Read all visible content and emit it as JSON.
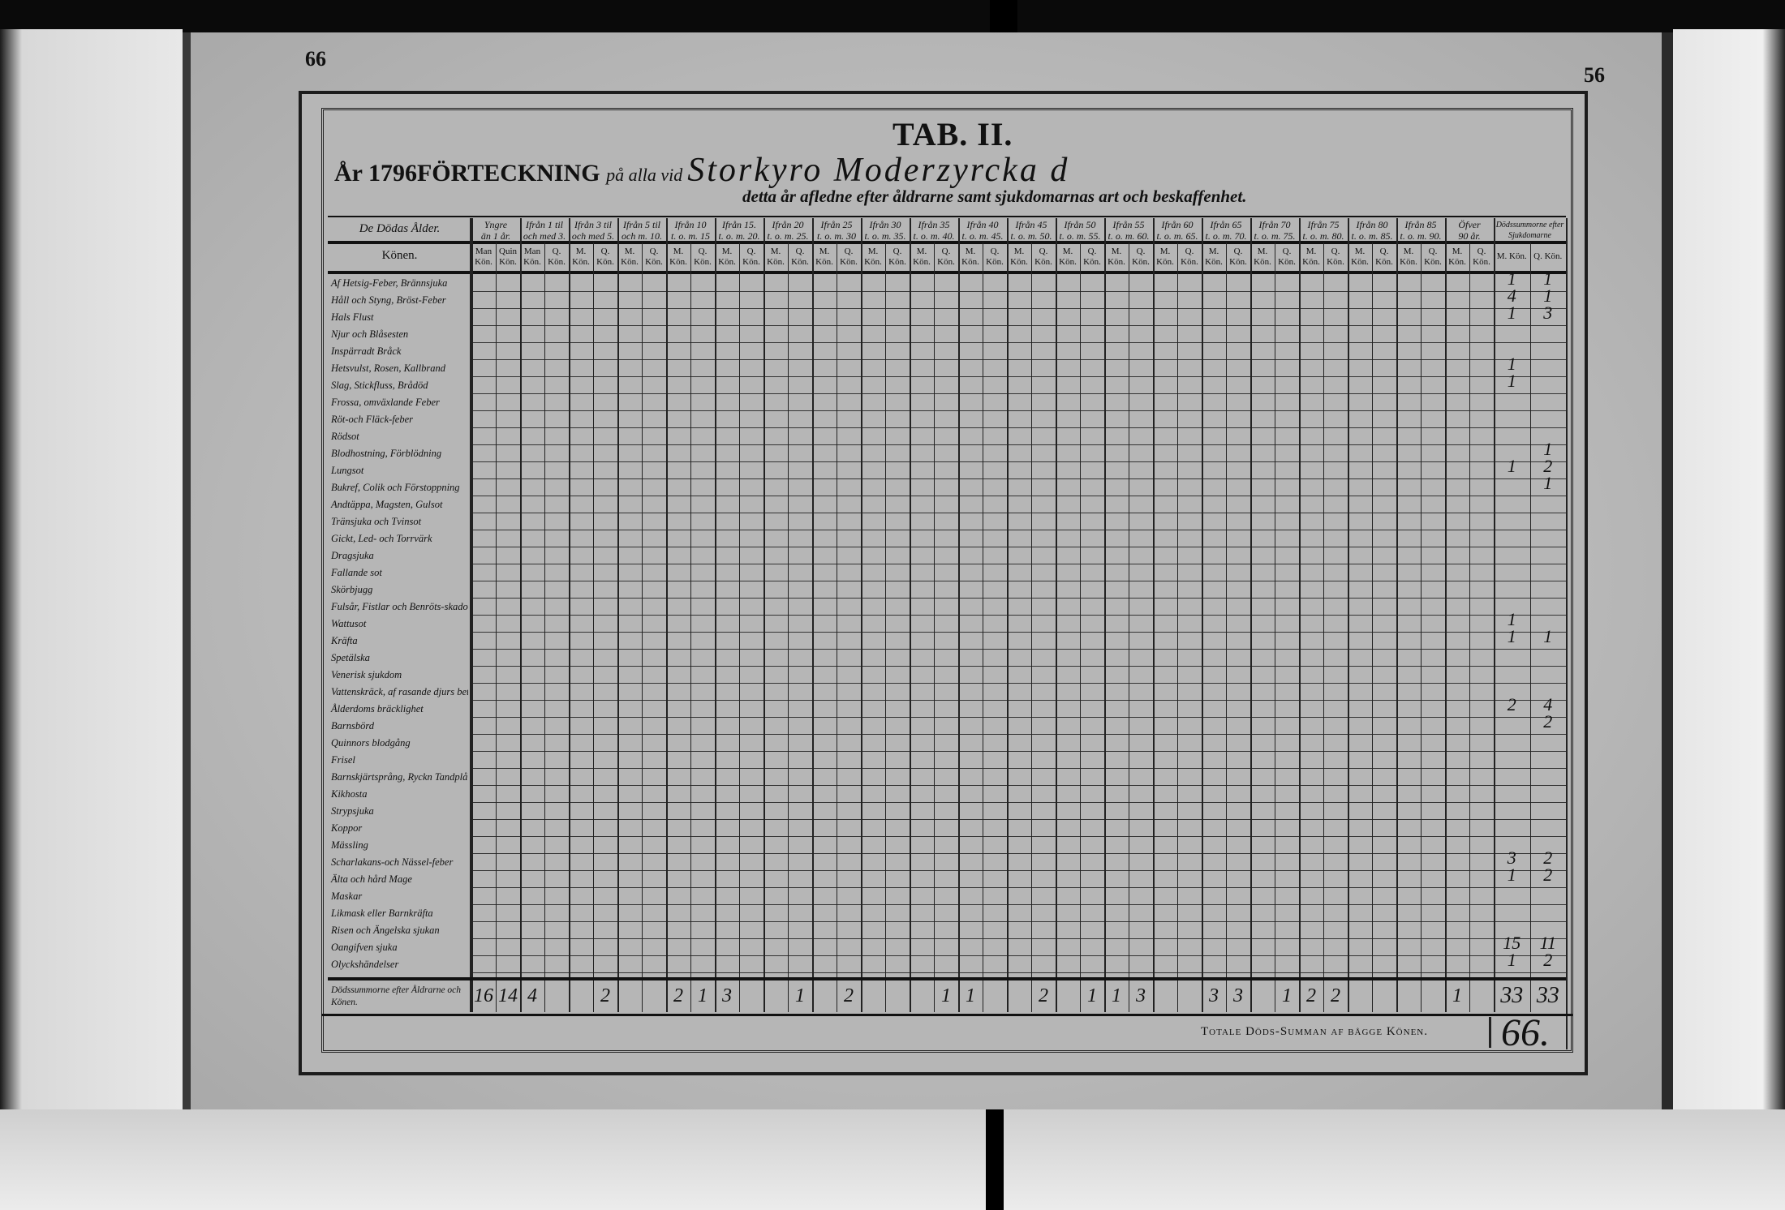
{
  "page": {
    "left_page_number": "66",
    "right_page_number": "56"
  },
  "header": {
    "tab": "TAB. II.",
    "year_prefix": "År 1796",
    "title": "FÖRTECKNING",
    "connector": "på alla vid",
    "parish_handwritten": "Storkyro Moderzyrcka d",
    "subtitle": "detta år afledne efter åldrarne samt sjukdomarnas art och beskaffenhet."
  },
  "table": {
    "age_label": "De Dödas Ålder.",
    "sex_label": "Könen.",
    "age_groups": [
      {
        "l1": "Yngre",
        "l2": "än 1 år."
      },
      {
        "l1": "Ifrån 1 til",
        "l2": "och med 3."
      },
      {
        "l1": "Ifrån 3 til",
        "l2": "och med 5."
      },
      {
        "l1": "Ifrån 5 til",
        "l2": "och m. 10."
      },
      {
        "l1": "Ifrån 10",
        "l2": "t. o. m. 15"
      },
      {
        "l1": "Ifrån 15.",
        "l2": "t. o. m. 20."
      },
      {
        "l1": "Ifrån 20",
        "l2": "t. o. m. 25."
      },
      {
        "l1": "Ifrån 25",
        "l2": "t. o. m. 30"
      },
      {
        "l1": "Ifrån 30",
        "l2": "t. o. m. 35."
      },
      {
        "l1": "Ifrån 35",
        "l2": "t. o. m. 40."
      },
      {
        "l1": "Ifrån 40",
        "l2": "t. o. m. 45."
      },
      {
        "l1": "Ifrån 45",
        "l2": "t. o. m. 50."
      },
      {
        "l1": "Ifrån 50",
        "l2": "t. o. m. 55."
      },
      {
        "l1": "Ifrån 55",
        "l2": "t. o. m. 60."
      },
      {
        "l1": "Ifrån 60",
        "l2": "t. o. m. 65."
      },
      {
        "l1": "Ifrån 65",
        "l2": "t. o. m. 70."
      },
      {
        "l1": "Ifrån 70",
        "l2": "t. o. m. 75."
      },
      {
        "l1": "Ifrån 75",
        "l2": "t. o. m. 80."
      },
      {
        "l1": "Ifrån 80",
        "l2": "t. o. m. 85."
      },
      {
        "l1": "Ifrån 85",
        "l2": "t. o. m. 90."
      },
      {
        "l1": "Öfver",
        "l2": "90 år."
      }
    ],
    "sex_columns_first": [
      {
        "l1": "Man",
        "l2": "Kön."
      },
      {
        "l1": "Quin",
        "l2": "Kön."
      }
    ],
    "sex_columns_second": [
      {
        "l1": "Man",
        "l2": "Kön."
      },
      {
        "l1": "Q.",
        "l2": "Kön."
      }
    ],
    "sex_columns": [
      {
        "l1": "M.",
        "l2": "Kön."
      },
      {
        "l1": "Q.",
        "l2": "Kön."
      }
    ],
    "totals_header": "Dödssummorne efter Sjukdomarne",
    "totals_columns": [
      "M. Kön.",
      "Q. Kön."
    ],
    "rows": [
      {
        "label": "Af Hetsig-Feber, Brännsjuka",
        "m": "1",
        "q": "1"
      },
      {
        "label": "Håll och Styng, Bröst-Feber",
        "m": "4",
        "q": "1"
      },
      {
        "label": "Hals Flust",
        "m": "1",
        "q": "3"
      },
      {
        "label": "Njur och Blåsesten",
        "m": "",
        "q": ""
      },
      {
        "label": "Inspärradt Bråck",
        "m": "",
        "q": ""
      },
      {
        "label": "Hetsvulst, Rosen, Kallbrand",
        "m": "1",
        "q": ""
      },
      {
        "label": "Slag, Stickfluss, Brådöd",
        "m": "1",
        "q": ""
      },
      {
        "label": "Frossa, omväxlande Feber",
        "m": "",
        "q": ""
      },
      {
        "label": "Röt-och Fläck-feber",
        "m": "",
        "q": ""
      },
      {
        "label": "Rödsot",
        "m": "",
        "q": ""
      },
      {
        "label": "Blodhostning, Förblödning",
        "m": "",
        "q": "1"
      },
      {
        "label": "Lungsot",
        "m": "1",
        "q": "2"
      },
      {
        "label": "Bukref, Colik och Förstoppning",
        "m": "",
        "q": "1"
      },
      {
        "label": "Andtäppa, Magsten, Gulsot",
        "m": "",
        "q": ""
      },
      {
        "label": "Tränsjuka och Tvinsot",
        "m": "",
        "q": ""
      },
      {
        "label": "Gickt, Led- och Torrvärk",
        "m": "",
        "q": ""
      },
      {
        "label": "Dragsjuka",
        "m": "",
        "q": ""
      },
      {
        "label": "Fallande sot",
        "m": "",
        "q": ""
      },
      {
        "label": "Skörbjugg",
        "m": "",
        "q": ""
      },
      {
        "label": "Fulsår, Fistlar och Benröts-skador",
        "m": "",
        "q": ""
      },
      {
        "label": "Wattusot",
        "m": "1",
        "q": ""
      },
      {
        "label": "Kräfta",
        "m": "1",
        "q": "1"
      },
      {
        "label": "Spetälska",
        "m": "",
        "q": ""
      },
      {
        "label": "Venerisk sjukdom",
        "m": "",
        "q": ""
      },
      {
        "label": "Vattenskräck, af rasande djurs bett",
        "m": "",
        "q": ""
      },
      {
        "label": "Ålderdoms bräcklighet",
        "m": "2",
        "q": "4"
      },
      {
        "label": "Barnsbörd",
        "m": "",
        "q": "2"
      },
      {
        "label": "Quinnors blodgång",
        "m": "",
        "q": ""
      },
      {
        "label": "Frisel",
        "m": "",
        "q": ""
      },
      {
        "label": "Barnskjärtsprång, Ryckn Tandplå.",
        "m": "",
        "q": ""
      },
      {
        "label": "Kikhosta",
        "m": "",
        "q": ""
      },
      {
        "label": "Strypsjuka",
        "m": "",
        "q": ""
      },
      {
        "label": "Koppor",
        "m": "",
        "q": ""
      },
      {
        "label": "Mässling",
        "m": "",
        "q": ""
      },
      {
        "label": "Scharlakans-och Nässel-feber",
        "m": "3",
        "q": "2"
      },
      {
        "label": "Älta och hård Mage",
        "m": "1",
        "q": "2"
      },
      {
        "label": "Maskar",
        "m": "",
        "q": ""
      },
      {
        "label": "Likmask eller Barnkräfta",
        "m": "",
        "q": ""
      },
      {
        "label": "Risen och Ängelska sjukan",
        "m": "",
        "q": ""
      },
      {
        "label": "Oangifven sjuka",
        "m": "15",
        "q": "11"
      },
      {
        "label": "Olyckshändelser",
        "m": "1",
        "q": "2"
      }
    ],
    "age_totals_label": "Dödssummorne efter Åldrarne och Könen.",
    "age_totals": [
      "16",
      "14",
      "4",
      "",
      "",
      "2",
      "",
      "",
      "2",
      "1",
      "3",
      "",
      "",
      "1",
      "",
      "2",
      "",
      "",
      "",
      "1",
      "1",
      "",
      "",
      "2",
      "",
      "1",
      "1",
      "3",
      "",
      "",
      "3",
      "3",
      "",
      "1",
      "2",
      "2",
      "",
      "",
      "",
      "",
      "1",
      ""
    ],
    "total_m": "33",
    "total_q": "33",
    "grand_total_label": "Totale Döds-Summan af bågge Könen.",
    "grand_total": "66."
  },
  "colors": {
    "paper": "#b9b9b9",
    "ink": "#111111",
    "background": "#0a0a0a"
  }
}
